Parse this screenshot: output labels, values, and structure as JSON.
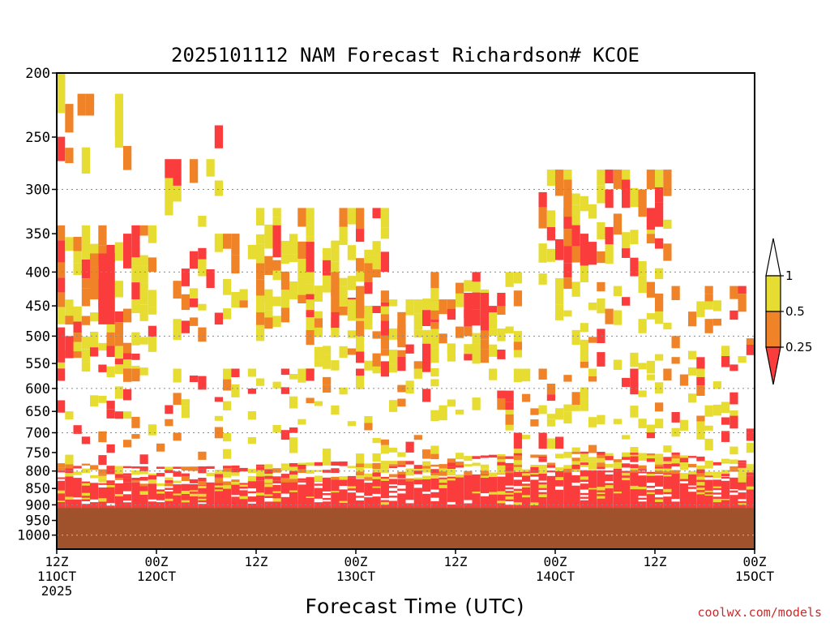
{
  "chart_data": {
    "type": "heatmap",
    "title": "2025101112 NAM Forecast Richardson# KCOE",
    "xlabel": "Forecast Time (UTC)",
    "credit": "coolwx.com/models",
    "y_axis": {
      "scale": "log-pressure",
      "range": [
        1050,
        200
      ],
      "ticks": [
        "200",
        "250",
        "300",
        "350",
        "400",
        "450",
        "500",
        "550",
        "600",
        "650",
        "700",
        "750",
        "800",
        "850",
        "900",
        "950",
        "1000"
      ]
    },
    "x_axis": {
      "range_hours": [
        0,
        84
      ],
      "ticks": [
        {
          "hour": 0,
          "line1": "12Z",
          "line2": "11OCT",
          "line3": "2025"
        },
        {
          "hour": 12,
          "line1": "00Z",
          "line2": "12OCT",
          "line3": ""
        },
        {
          "hour": 24,
          "line1": "12Z",
          "line2": "",
          "line3": ""
        },
        {
          "hour": 36,
          "line1": "00Z",
          "line2": "13OCT",
          "line3": ""
        },
        {
          "hour": 48,
          "line1": "12Z",
          "line2": "",
          "line3": ""
        },
        {
          "hour": 60,
          "line1": "00Z",
          "line2": "14OCT",
          "line3": ""
        },
        {
          "hour": 72,
          "line1": "12Z",
          "line2": "",
          "line3": ""
        },
        {
          "hour": 84,
          "line1": "00Z",
          "line2": "15OCT",
          "line3": ""
        }
      ]
    },
    "dotted_grid_levels": [
      300,
      400,
      500,
      600,
      700,
      800,
      900,
      1000
    ],
    "colorbar": {
      "levels": [
        "1",
        "0.5",
        "0.25"
      ],
      "bins": [
        {
          "label": "> 1",
          "color": "#ffffff"
        },
        {
          "label": "0.5 - 1",
          "color": "#e6dc32"
        },
        {
          "label": "0.25 - 0.5",
          "color": "#f08228"
        },
        {
          "label": "< 0.25",
          "color": "#fa3c3c"
        }
      ]
    },
    "below_ground": {
      "pressure_top": 910,
      "color": "#a0522d"
    },
    "cells": [
      {
        "h": 0,
        "p1": 200,
        "p2": 230,
        "bin": 1
      },
      {
        "h": 2.5,
        "p1": 215,
        "p2": 232,
        "bin": 2
      },
      {
        "h": 3.5,
        "p1": 215,
        "p2": 232,
        "bin": 2
      },
      {
        "h": 7,
        "p1": 215,
        "p2": 248,
        "bin": 1
      },
      {
        "h": 0,
        "p1": 485,
        "p2": 540,
        "bin": 3
      },
      {
        "h": 1,
        "p1": 500,
        "p2": 540,
        "bin": 3
      },
      {
        "h": 4,
        "p1": 375,
        "p2": 440,
        "bin": 2
      },
      {
        "h": 5,
        "p1": 375,
        "p2": 480,
        "bin": 3
      },
      {
        "h": 6,
        "p1": 375,
        "p2": 480,
        "bin": 3
      },
      {
        "h": 8,
        "p1": 350,
        "p2": 395,
        "bin": 3
      },
      {
        "h": 9,
        "p1": 340,
        "p2": 380,
        "bin": 3
      },
      {
        "h": 19,
        "p1": 240,
        "p2": 260,
        "bin": 3
      },
      {
        "h": 26,
        "p1": 340,
        "p2": 380,
        "bin": 3
      },
      {
        "h": 30,
        "p1": 360,
        "p2": 400,
        "bin": 3
      },
      {
        "h": 33,
        "p1": 400,
        "p2": 460,
        "bin": 2
      },
      {
        "h": 36,
        "p1": 420,
        "p2": 470,
        "bin": 2
      },
      {
        "h": 41,
        "p1": 460,
        "p2": 520,
        "bin": 2
      },
      {
        "h": 49,
        "p1": 430,
        "p2": 470,
        "bin": 3
      },
      {
        "h": 51,
        "p1": 430,
        "p2": 470,
        "bin": 3
      },
      {
        "h": 53,
        "p1": 430,
        "p2": 450,
        "bin": 3
      },
      {
        "h": 61,
        "p1": 290,
        "p2": 330,
        "bin": 2
      },
      {
        "h": 63,
        "p1": 350,
        "p2": 390,
        "bin": 3
      },
      {
        "h": 64,
        "p1": 360,
        "p2": 390,
        "bin": 3
      },
      {
        "h": 66,
        "p1": 300,
        "p2": 320,
        "bin": 3
      },
      {
        "h": 68,
        "p1": 290,
        "p2": 320,
        "bin": 3
      },
      {
        "h": 70,
        "p1": 300,
        "p2": 330,
        "bin": 2
      },
      {
        "h": 71,
        "p1": 320,
        "p2": 345,
        "bin": 3
      },
      {
        "h": 55,
        "p1": 700,
        "p2": 740,
        "bin": 3
      },
      {
        "h": 58,
        "p1": 700,
        "p2": 740,
        "bin": 3
      },
      {
        "h": 60,
        "p1": 710,
        "p2": 740,
        "bin": 3
      },
      {
        "h": 81,
        "p1": 660,
        "p2": 690,
        "bin": 3
      },
      {
        "h": 83,
        "p1": 690,
        "p2": 720,
        "bin": 3
      }
    ]
  }
}
